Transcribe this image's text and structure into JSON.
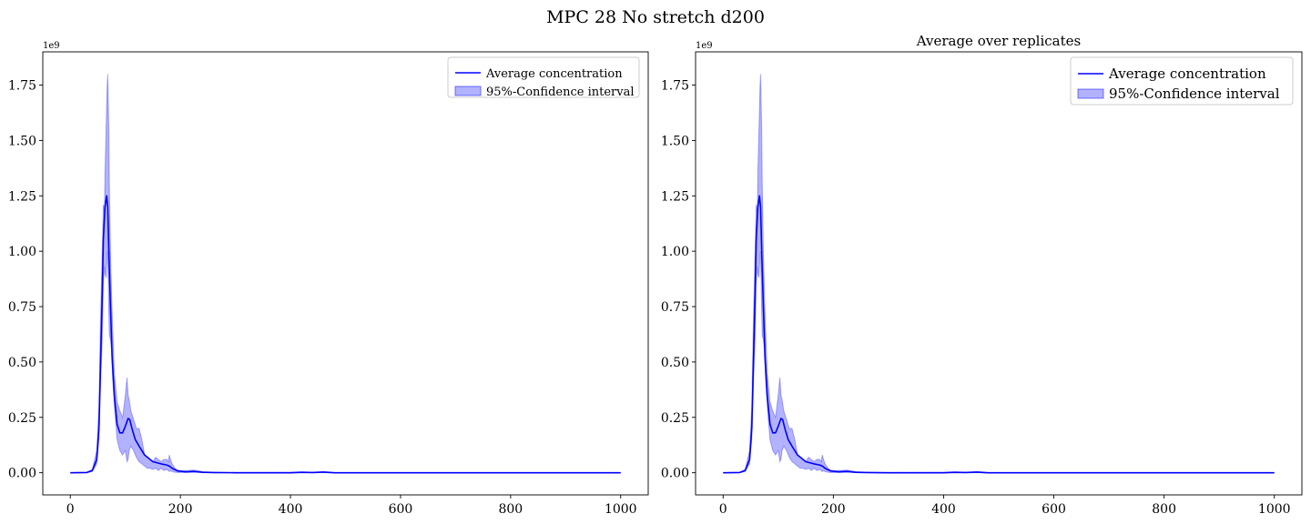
{
  "figure": {
    "suptitle": "MPC 28 No stretch d200"
  },
  "chart_data": [
    {
      "type": "area",
      "title": "",
      "xlabel": "",
      "ylabel": "",
      "xlim": [
        -50,
        1050
      ],
      "ylim": [
        -0.1,
        1.9
      ],
      "y_offset_label": "1e9",
      "xticks": [
        0,
        200,
        400,
        600,
        800,
        1000
      ],
      "yticks": [
        0.0,
        0.25,
        0.5,
        0.75,
        1.0,
        1.25,
        1.5,
        1.75
      ],
      "ytick_labels": [
        "0.00",
        "0.25",
        "0.50",
        "0.75",
        "1.00",
        "1.25",
        "1.50",
        "1.75"
      ],
      "legend_position": "upper right",
      "series": [
        {
          "name": "Average concentration",
          "kind": "line",
          "color": "#0000ff",
          "x": [
            0,
            30,
            40,
            48,
            52,
            55,
            58,
            60,
            63,
            66,
            68,
            70,
            73,
            76,
            80,
            85,
            90,
            95,
            100,
            105,
            108,
            112,
            118,
            125,
            135,
            150,
            165,
            175,
            180,
            185,
            195,
            210,
            225,
            240,
            260,
            300,
            400,
            420,
            440,
            460,
            480,
            600,
            800,
            1000
          ],
          "y": [
            0,
            0.001,
            0.01,
            0.06,
            0.2,
            0.5,
            0.8,
            1.05,
            1.2,
            1.25,
            1.2,
            1.0,
            0.75,
            0.52,
            0.35,
            0.22,
            0.18,
            0.18,
            0.21,
            0.245,
            0.24,
            0.2,
            0.15,
            0.12,
            0.08,
            0.05,
            0.04,
            0.035,
            0.03,
            0.02,
            0.008,
            0.004,
            0.006,
            0.002,
            0.001,
            0,
            0,
            0.002,
            0.001,
            0.003,
            0,
            0,
            0,
            0
          ]
        },
        {
          "name": "95%-Confidence interval",
          "kind": "band",
          "color": "#0000ff",
          "opacity": 0.3,
          "x": [
            0,
            30,
            40,
            48,
            52,
            55,
            58,
            60,
            62,
            63,
            65,
            67,
            68,
            70,
            71,
            73,
            75,
            77,
            80,
            85,
            90,
            95,
            100,
            103,
            105,
            107,
            110,
            115,
            120,
            125,
            130,
            135,
            140,
            145,
            150,
            155,
            160,
            165,
            170,
            175,
            178,
            180,
            182,
            185,
            190,
            195,
            200,
            210,
            225,
            240,
            260,
            300,
            400,
            420,
            440,
            460,
            480,
            600,
            800,
            1000
          ],
          "lower": [
            0,
            0.0005,
            0.005,
            0.04,
            0.15,
            0.4,
            0.6,
            0.85,
            0.93,
            0.9,
            0.88,
            0.98,
            1.0,
            0.72,
            0.62,
            0.6,
            0.55,
            0.42,
            0.3,
            0.15,
            0.1,
            0.08,
            0.1,
            0.05,
            0.06,
            0.1,
            0.12,
            0.1,
            0.07,
            0.05,
            0.04,
            0.03,
            0.02,
            0.02,
            0.015,
            0.02,
            0.01,
            0.02,
            0.01,
            0.015,
            0.01,
            0.005,
            0.01,
            0.005,
            0.002,
            0.001,
            0.001,
            0.001,
            0.002,
            0.001,
            0,
            0,
            0,
            0,
            0,
            0,
            0,
            0,
            0,
            0
          ],
          "upper": [
            0,
            0.002,
            0.015,
            0.1,
            0.3,
            0.7,
            1.0,
            1.21,
            1.18,
            1.35,
            1.55,
            1.75,
            1.8,
            1.55,
            1.3,
            1.0,
            0.8,
            0.65,
            0.45,
            0.32,
            0.28,
            0.25,
            0.35,
            0.43,
            0.35,
            0.33,
            0.28,
            0.24,
            0.2,
            0.2,
            0.15,
            0.08,
            0.07,
            0.06,
            0.05,
            0.07,
            0.06,
            0.05,
            0.06,
            0.06,
            0.05,
            0.08,
            0.06,
            0.04,
            0.02,
            0.012,
            0.01,
            0.01,
            0.012,
            0.006,
            0.002,
            0.001,
            0.002,
            0.004,
            0.002,
            0.005,
            0.001,
            0,
            0,
            0
          ]
        }
      ]
    },
    {
      "type": "area",
      "title": "Average over replicates",
      "xlabel": "",
      "ylabel": "",
      "xlim": [
        -50,
        1050
      ],
      "ylim": [
        -0.1,
        1.9
      ],
      "y_offset_label": "1e9",
      "xticks": [
        0,
        200,
        400,
        600,
        800,
        1000
      ],
      "yticks": [
        0.0,
        0.25,
        0.5,
        0.75,
        1.0,
        1.25,
        1.5,
        1.75
      ],
      "ytick_labels": [
        "0.00",
        "0.25",
        "0.50",
        "0.75",
        "1.00",
        "1.25",
        "1.50",
        "1.75"
      ],
      "legend_position": "upper right",
      "series": [
        {
          "name": "Average concentration",
          "kind": "line",
          "color": "#0000ff",
          "x": [
            0,
            30,
            40,
            48,
            52,
            55,
            58,
            60,
            63,
            66,
            68,
            70,
            73,
            76,
            80,
            85,
            90,
            95,
            100,
            105,
            108,
            112,
            118,
            125,
            135,
            150,
            165,
            175,
            180,
            185,
            195,
            210,
            225,
            240,
            260,
            300,
            400,
            420,
            440,
            460,
            480,
            600,
            800,
            1000
          ],
          "y": [
            0,
            0.001,
            0.01,
            0.06,
            0.2,
            0.5,
            0.8,
            1.05,
            1.2,
            1.25,
            1.2,
            1.0,
            0.75,
            0.52,
            0.35,
            0.22,
            0.18,
            0.18,
            0.21,
            0.245,
            0.24,
            0.2,
            0.15,
            0.12,
            0.08,
            0.05,
            0.04,
            0.035,
            0.03,
            0.02,
            0.008,
            0.004,
            0.006,
            0.002,
            0.001,
            0,
            0,
            0.002,
            0.001,
            0.003,
            0,
            0,
            0,
            0
          ]
        },
        {
          "name": "95%-Confidence interval",
          "kind": "band",
          "color": "#0000ff",
          "opacity": 0.3,
          "x": [
            0,
            30,
            40,
            48,
            52,
            55,
            58,
            60,
            62,
            63,
            65,
            67,
            68,
            70,
            71,
            73,
            75,
            77,
            80,
            85,
            90,
            95,
            100,
            103,
            105,
            107,
            110,
            115,
            120,
            125,
            130,
            135,
            140,
            145,
            150,
            155,
            160,
            165,
            170,
            175,
            178,
            180,
            182,
            185,
            190,
            195,
            200,
            210,
            225,
            240,
            260,
            300,
            400,
            420,
            440,
            460,
            480,
            600,
            800,
            1000
          ],
          "lower": [
            0,
            0.0005,
            0.005,
            0.04,
            0.15,
            0.4,
            0.6,
            0.85,
            0.93,
            0.9,
            0.88,
            0.98,
            1.0,
            0.72,
            0.62,
            0.6,
            0.55,
            0.42,
            0.3,
            0.15,
            0.1,
            0.08,
            0.1,
            0.05,
            0.06,
            0.1,
            0.12,
            0.1,
            0.07,
            0.05,
            0.04,
            0.03,
            0.02,
            0.02,
            0.015,
            0.02,
            0.01,
            0.02,
            0.01,
            0.015,
            0.01,
            0.005,
            0.01,
            0.005,
            0.002,
            0.001,
            0.001,
            0.001,
            0.002,
            0.001,
            0,
            0,
            0,
            0,
            0,
            0,
            0,
            0,
            0,
            0
          ],
          "upper": [
            0,
            0.002,
            0.015,
            0.1,
            0.3,
            0.7,
            1.0,
            1.21,
            1.18,
            1.35,
            1.55,
            1.75,
            1.8,
            1.55,
            1.3,
            1.0,
            0.8,
            0.65,
            0.45,
            0.32,
            0.28,
            0.25,
            0.35,
            0.43,
            0.35,
            0.33,
            0.28,
            0.24,
            0.2,
            0.2,
            0.15,
            0.08,
            0.07,
            0.06,
            0.05,
            0.07,
            0.06,
            0.05,
            0.06,
            0.06,
            0.05,
            0.08,
            0.06,
            0.04,
            0.02,
            0.012,
            0.01,
            0.01,
            0.012,
            0.006,
            0.002,
            0.001,
            0.002,
            0.004,
            0.002,
            0.005,
            0.001,
            0,
            0,
            0
          ]
        }
      ]
    }
  ]
}
